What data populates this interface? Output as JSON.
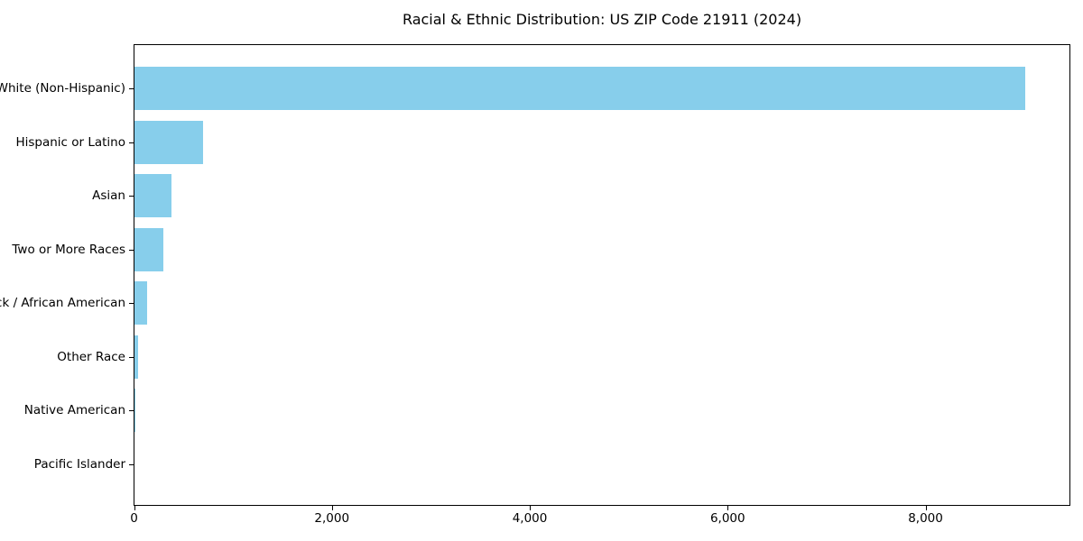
{
  "chart_data": {
    "type": "bar",
    "orientation": "horizontal",
    "title": "Racial & Ethnic Distribution: US ZIP Code 21911 (2024)",
    "categories": [
      "White (Non-Hispanic)",
      "Hispanic or Latino",
      "Asian",
      "Two or More Races",
      "Black / African American",
      "Other Race",
      "Native American",
      "Pacific Islander"
    ],
    "values": [
      9000,
      690,
      370,
      295,
      130,
      32,
      10,
      0
    ],
    "xlabel": "",
    "ylabel": "",
    "xlim": [
      0,
      9450
    ],
    "x_ticks": [
      {
        "value": 0,
        "label": "0"
      },
      {
        "value": 2000,
        "label": "2,000"
      },
      {
        "value": 4000,
        "label": "4,000"
      },
      {
        "value": 6000,
        "label": "6,000"
      },
      {
        "value": 8000,
        "label": "8,000"
      }
    ],
    "grid": "off",
    "legend": "none",
    "bar_color": "#87CEEB",
    "axis_color": "#000000",
    "background": "#FFFFFF"
  }
}
